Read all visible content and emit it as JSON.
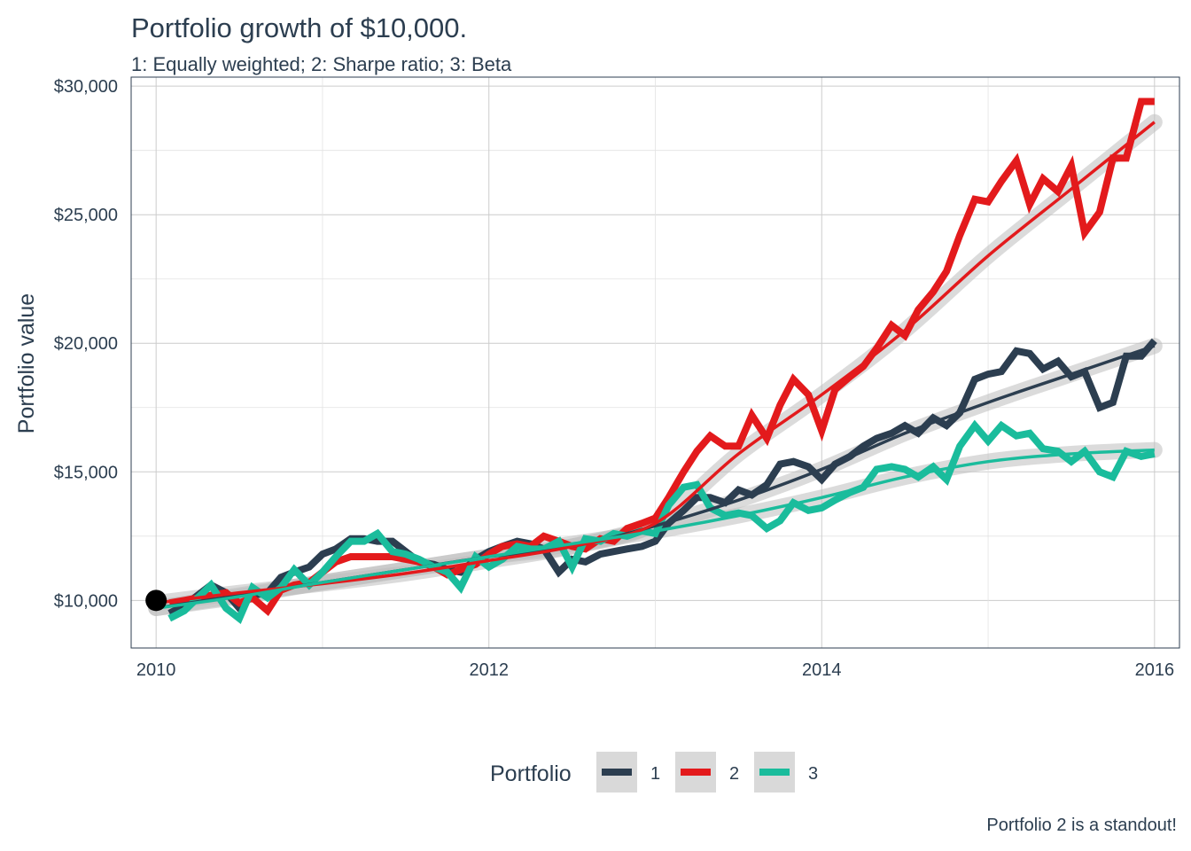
{
  "title": "Portfolio growth of $10,000.",
  "subtitle": "1: Equally weighted; 2: Sharpe ratio; 3: Beta",
  "caption": "Portfolio 2 is a standout!",
  "chart_data": {
    "type": "line",
    "title": "Portfolio growth of $10,000.",
    "subtitle": "1: Equally weighted; 2: Sharpe ratio; 3: Beta",
    "xlabel": "",
    "ylabel": "Portfolio value",
    "xlim": [
      2009.85,
      2016.15
    ],
    "ylim": [
      8150,
      30350
    ],
    "x_ticks": [
      2010,
      2012,
      2014,
      2016
    ],
    "x_tick_labels": [
      "2010",
      "2012",
      "2014",
      "2016"
    ],
    "y_ticks": [
      10000,
      15000,
      20000,
      25000,
      30000
    ],
    "y_tick_labels": [
      "$10,000",
      "$15,000",
      "$20,000",
      "$25,000",
      "$30,000"
    ],
    "grid": true,
    "legend": {
      "title": "Portfolio",
      "position": "bottom"
    },
    "start_point": {
      "x": 2010.0,
      "y": 10000
    },
    "x": [
      2010.08,
      2010.17,
      2010.25,
      2010.33,
      2010.42,
      2010.5,
      2010.58,
      2010.67,
      2010.75,
      2010.83,
      2010.92,
      2011.0,
      2011.08,
      2011.17,
      2011.25,
      2011.33,
      2011.42,
      2011.5,
      2011.58,
      2011.67,
      2011.75,
      2011.83,
      2011.92,
      2012.0,
      2012.08,
      2012.17,
      2012.25,
      2012.33,
      2012.42,
      2012.5,
      2012.58,
      2012.67,
      2012.75,
      2012.83,
      2012.92,
      2013.0,
      2013.08,
      2013.17,
      2013.25,
      2013.33,
      2013.42,
      2013.5,
      2013.58,
      2013.67,
      2013.75,
      2013.83,
      2013.92,
      2014.0,
      2014.08,
      2014.17,
      2014.25,
      2014.33,
      2014.42,
      2014.5,
      2014.58,
      2014.67,
      2014.75,
      2014.83,
      2014.92,
      2015.0,
      2015.08,
      2015.17,
      2015.25,
      2015.33,
      2015.42,
      2015.5,
      2015.58,
      2015.67,
      2015.75,
      2015.83,
      2015.92,
      2016.0
    ],
    "series": [
      {
        "name": "1",
        "color": "#2c3e50",
        "values": [
          9500,
          9800,
          10200,
          10600,
          10300,
          9700,
          10200,
          10300,
          10900,
          11100,
          11300,
          11800,
          12000,
          12400,
          12400,
          12300,
          12300,
          11900,
          11500,
          11400,
          11200,
          11100,
          11600,
          11900,
          12100,
          12300,
          12200,
          12000,
          11100,
          11600,
          11500,
          11800,
          11900,
          12000,
          12100,
          12300,
          13000,
          13500,
          14000,
          14000,
          13800,
          14300,
          14100,
          14500,
          15300,
          15400,
          15200,
          14700,
          15300,
          15600,
          16000,
          16300,
          16500,
          16800,
          16500,
          17100,
          16800,
          17300,
          18600,
          18800,
          18900,
          19700,
          19600,
          19000,
          19300,
          18700,
          18900,
          17500,
          17700,
          19500,
          19500,
          20100
        ]
      },
      {
        "name": "2",
        "color": "#e31a1c",
        "values": [
          9900,
          10000,
          10100,
          10200,
          10300,
          9900,
          10100,
          9600,
          10400,
          10600,
          10700,
          11100,
          11500,
          11700,
          11700,
          11700,
          11700,
          11600,
          11500,
          11300,
          11000,
          11200,
          11400,
          11800,
          12100,
          12200,
          12100,
          12500,
          12300,
          12100,
          12000,
          12400,
          12300,
          12800,
          13000,
          13200,
          14000,
          15000,
          15800,
          16400,
          16000,
          16000,
          17200,
          16300,
          17600,
          18600,
          18000,
          16600,
          18200,
          18700,
          19100,
          19800,
          20700,
          20300,
          21300,
          22000,
          22800,
          24200,
          25600,
          25500,
          26300,
          27100,
          25400,
          26400,
          25900,
          26900,
          24300,
          25100,
          27200,
          27200,
          29400,
          29400
        ]
      },
      {
        "name": "3",
        "color": "#1abc9c",
        "values": [
          9300,
          9600,
          10100,
          10600,
          9700,
          9300,
          10500,
          10100,
          10500,
          11200,
          10600,
          11100,
          11700,
          12300,
          12300,
          12600,
          11900,
          11800,
          11600,
          11300,
          11100,
          10500,
          11700,
          11300,
          11600,
          12100,
          12000,
          12000,
          12300,
          11300,
          12400,
          12300,
          12600,
          12500,
          12700,
          12600,
          13700,
          14400,
          14500,
          13600,
          13300,
          13400,
          13300,
          12800,
          13100,
          13800,
          13500,
          13600,
          13900,
          14200,
          14400,
          15100,
          15200,
          15100,
          14800,
          15200,
          14700,
          16000,
          16800,
          16200,
          16800,
          16400,
          16500,
          15900,
          15800,
          15400,
          15800,
          15000,
          14800,
          15800,
          15600,
          15700
        ]
      }
    ],
    "trend": {
      "method": "loess",
      "x": [
        2010.0,
        2010.5,
        2011.0,
        2011.5,
        2012.0,
        2012.5,
        2013.0,
        2013.5,
        2014.0,
        2014.5,
        2015.0,
        2015.5,
        2016.0
      ],
      "series": [
        {
          "name": "1",
          "values": [
            9700,
            10200,
            10700,
            11200,
            11700,
            12100,
            12900,
            13900,
            15100,
            16500,
            17700,
            18800,
            19900
          ]
        },
        {
          "name": "2",
          "values": [
            9900,
            10300,
            10650,
            11050,
            11550,
            12100,
            13000,
            15700,
            18000,
            20500,
            23400,
            26000,
            28600
          ]
        },
        {
          "name": "3",
          "values": [
            9700,
            10150,
            10700,
            11200,
            11700,
            12200,
            12700,
            13300,
            14000,
            14800,
            15400,
            15700,
            15850
          ]
        }
      ]
    }
  }
}
